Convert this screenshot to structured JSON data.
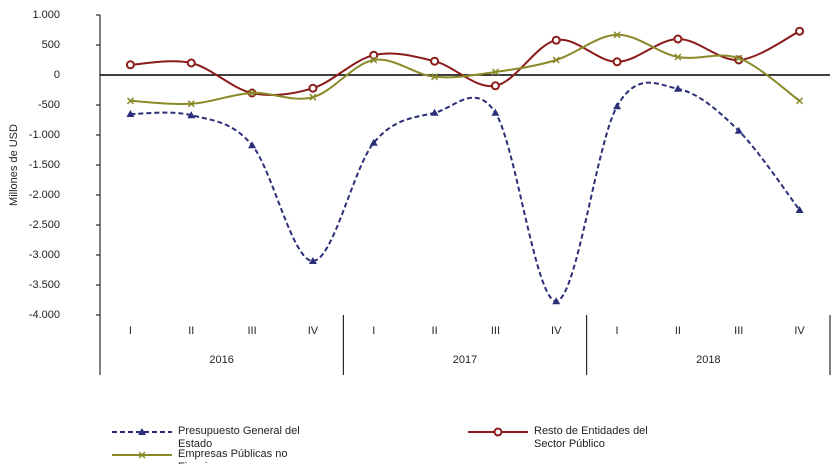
{
  "chart_data": {
    "type": "line",
    "y_label": "Millones de USD",
    "categories": [
      "I",
      "II",
      "III",
      "IV",
      "I",
      "II",
      "III",
      "IV",
      "I",
      "II",
      "III",
      "IV"
    ],
    "groups": [
      "2016",
      "2017",
      "2018"
    ],
    "ylim": [
      -4000,
      1000
    ],
    "yticks": [
      {
        "value": 1000,
        "label": "1.000"
      },
      500,
      0,
      -500,
      {
        "value": -1000,
        "label": "-1.000"
      },
      {
        "value": -1500,
        "label": "-1.500"
      },
      {
        "value": -2000,
        "label": "-2.000"
      },
      {
        "value": -2500,
        "label": "-2.500"
      },
      {
        "value": -3000,
        "label": "-3.000"
      },
      {
        "value": -3500,
        "label": "-3.500"
      },
      {
        "value": -4000,
        "label": "-4.000"
      }
    ],
    "series": [
      {
        "name": "Presupuesto General del Estado",
        "color": "#2b2f7a",
        "marker": "triangle",
        "dashed": true,
        "values": [
          -650,
          -670,
          -1170,
          -3100,
          -1130,
          -630,
          -630,
          -3770,
          -520,
          -230,
          -930,
          -2250
        ]
      },
      {
        "name": "Resto de Entidades del Sector Público",
        "color": "#8b1a1a",
        "marker": "circle",
        "dashed": false,
        "values": [
          170,
          200,
          -300,
          -220,
          330,
          230,
          -180,
          580,
          220,
          600,
          250,
          730
        ]
      },
      {
        "name": "Empresas Públicas no Finacieras",
        "color": "#8a8a2a",
        "marker": "x",
        "dashed": false,
        "values": [
          -430,
          -480,
          -300,
          -370,
          250,
          -30,
          50,
          250,
          670,
          300,
          280,
          -430
        ]
      }
    ]
  }
}
